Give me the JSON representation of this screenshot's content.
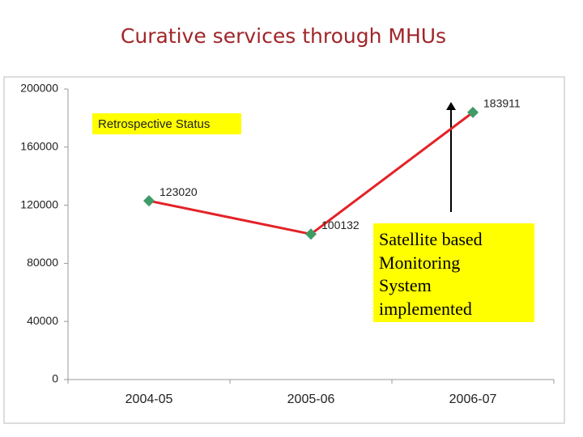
{
  "chart_data": {
    "type": "line",
    "title": "Curative services through MHUs",
    "categories": [
      "2004-05",
      "2005-06",
      "2006-07"
    ],
    "values": [
      123020,
      100132,
      183911
    ],
    "color": "#e32228",
    "marker_color": "#3f9a66",
    "ylim": [
      0,
      200000
    ],
    "yticks": [
      0,
      40000,
      80000,
      120000,
      160000,
      200000
    ],
    "grid": false,
    "annotations": [
      "Retrospective Status",
      "Satellite based Monitoring System implemented"
    ]
  }
}
